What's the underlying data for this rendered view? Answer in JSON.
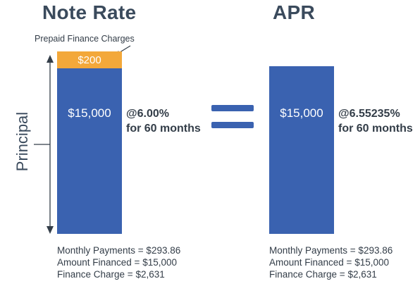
{
  "left": {
    "title": "Note Rate",
    "prepaid_label": "Prepaid Finance Charges",
    "prepaid_amount": "$200",
    "principal_amount": "$15,000",
    "rate_line1": "@6.00%",
    "rate_line2": "for 60 months",
    "stats": [
      "Monthly Payments = $293.86",
      "Amount Financed = $15,000",
      "Finance Charge = $2,631"
    ]
  },
  "right": {
    "title": "APR",
    "principal_amount": "$15,000",
    "rate_line1": "@6.55235%",
    "rate_line2": "for 60 months",
    "stats": [
      "Monthly Payments = $293.86",
      "Amount Financed = $15,000",
      "Finance Charge = $2,631"
    ]
  },
  "axis_label": "Principal",
  "colors": {
    "bar_blue": "#3a62b0",
    "prepaid_orange": "#f3a83a",
    "heading_text": "#3a4a5c",
    "body_text": "#333d48"
  }
}
